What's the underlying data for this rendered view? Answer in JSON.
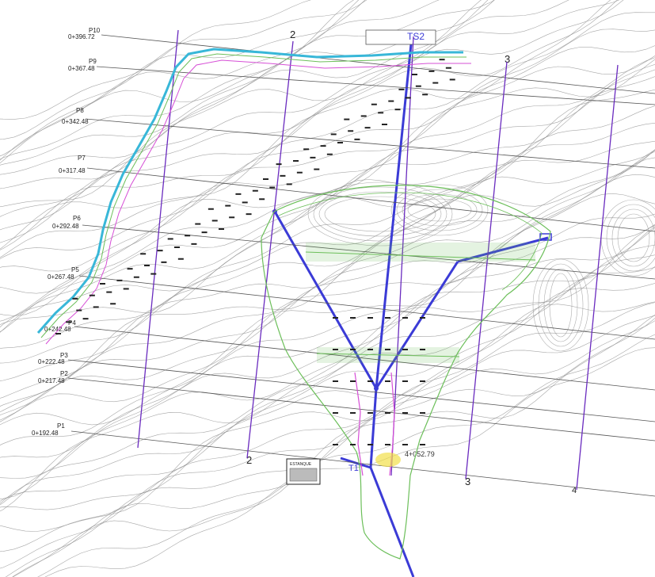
{
  "drawing": {
    "station_labels": [
      {
        "point": "P10",
        "station": "0+396.72"
      },
      {
        "point": "P9",
        "station": "0+367.48"
      },
      {
        "point": "P8",
        "station": "0+342.48"
      },
      {
        "point": "P7",
        "station": "0+317.48"
      },
      {
        "point": "P6",
        "station": "0+292.48"
      },
      {
        "point": "P5",
        "station": "0+267.48"
      },
      {
        "point": "P4",
        "station": "0+242.48"
      },
      {
        "point": "P3",
        "station": "0+222.48"
      },
      {
        "point": "P2",
        "station": "0+217.48"
      },
      {
        "point": "P1",
        "station": "0+192.48"
      }
    ],
    "tank_label": "TS2",
    "junction_label": "T1",
    "section_labels": [
      "2",
      "2",
      "3",
      "3",
      "4"
    ],
    "coordinate_text": "4+052.79",
    "legend_block_title": "ESTANQUE"
  },
  "colors": {
    "contour": "#8a8a8a",
    "section_line": "#6a2bbf",
    "pipeline": "#3b3bd6",
    "area_outline": "#6cbf5a",
    "road_cyan": "#38b7d8",
    "road_magenta": "#d64fd6",
    "highlight": "#f2e04a"
  }
}
